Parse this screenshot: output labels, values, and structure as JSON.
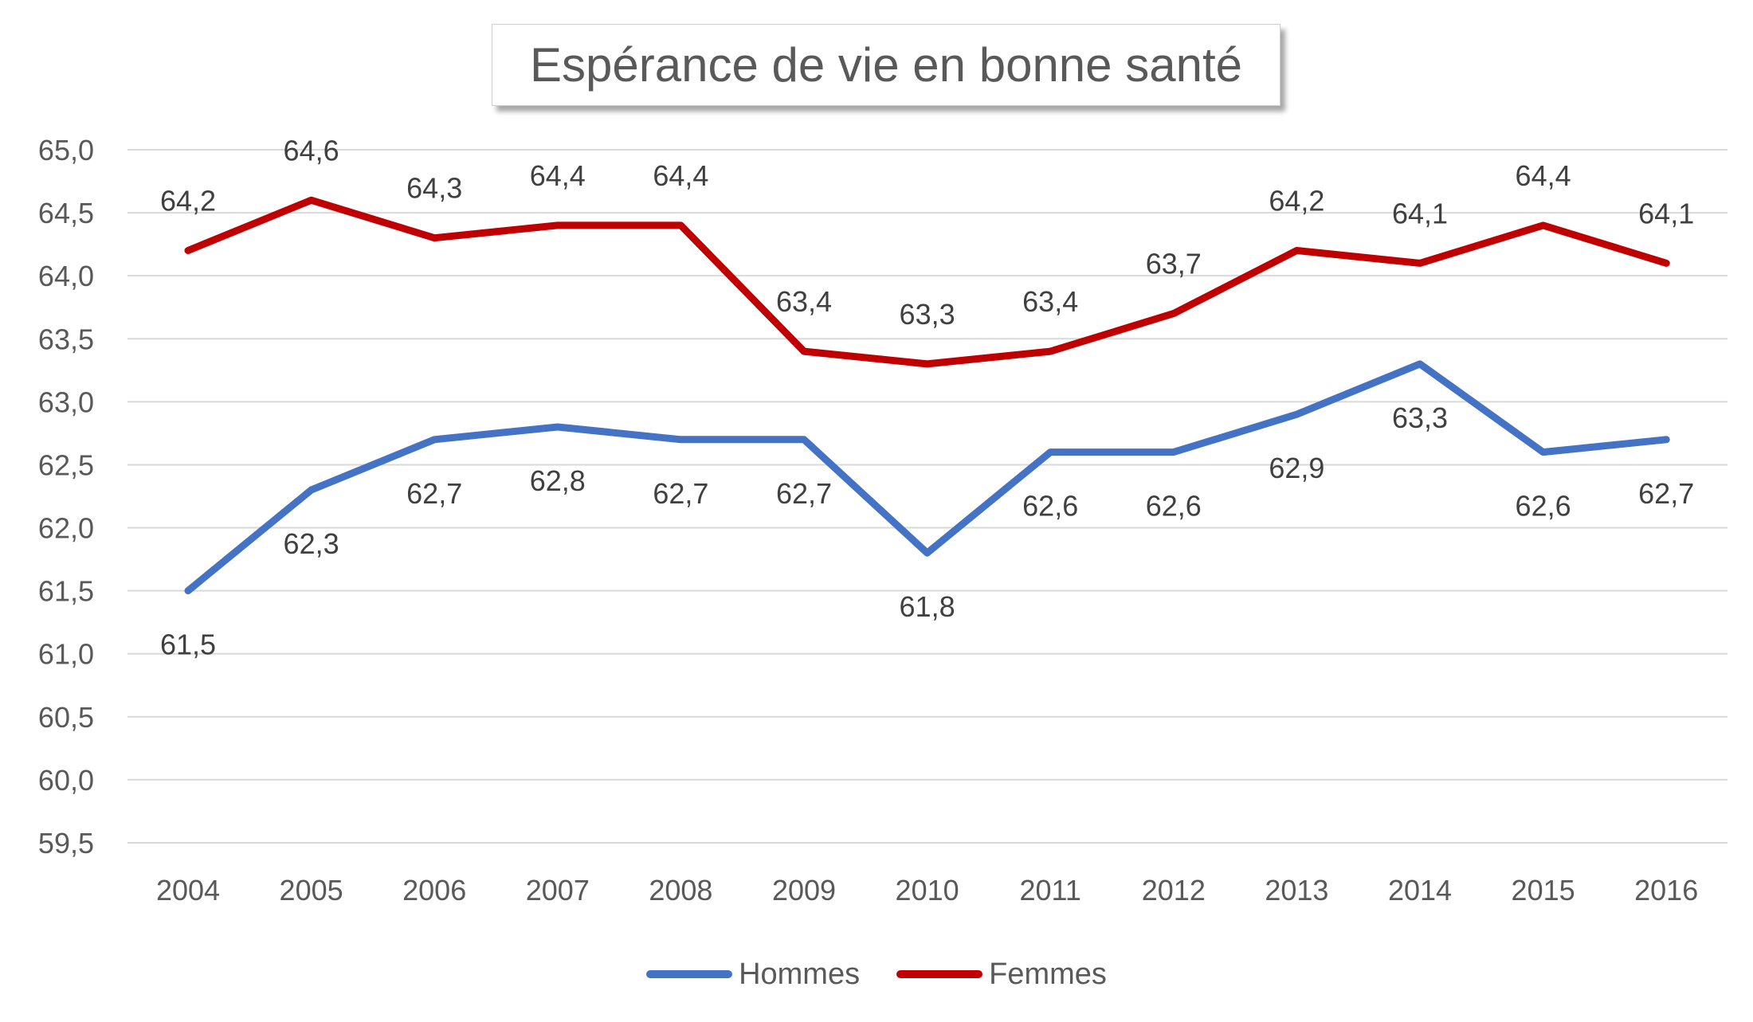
{
  "chart_data": {
    "type": "line",
    "title": "Espérance de vie en bonne santé",
    "categories": [
      "2004",
      "2005",
      "2006",
      "2007",
      "2008",
      "2009",
      "2010",
      "2011",
      "2012",
      "2013",
      "2014",
      "2015",
      "2016"
    ],
    "series": [
      {
        "name": "Hommes",
        "color": "#4472c4",
        "values": [
          61.5,
          62.3,
          62.7,
          62.8,
          62.7,
          62.7,
          61.8,
          62.6,
          62.6,
          62.9,
          63.3,
          62.6,
          62.7
        ],
        "labels": [
          "61,5",
          "62,3",
          "62,7",
          "62,8",
          "62,7",
          "62,7",
          "61,8",
          "62,6",
          "62,6",
          "62,9",
          "63,3",
          "62,6",
          "62,7"
        ],
        "label_position": "below"
      },
      {
        "name": "Femmes",
        "color": "#c00000",
        "values": [
          64.2,
          64.6,
          64.3,
          64.4,
          64.4,
          63.4,
          63.3,
          63.4,
          63.7,
          64.2,
          64.1,
          64.4,
          64.1
        ],
        "labels": [
          "64,2",
          "64,6",
          "64,3",
          "64,4",
          "64,4",
          "63,4",
          "63,3",
          "63,4",
          "63,7",
          "64,2",
          "64,1",
          "64,4",
          "64,1"
        ],
        "label_position": "above"
      }
    ],
    "ylim": [
      59.5,
      65.0
    ],
    "yticks": [
      "59,5",
      "60,0",
      "60,5",
      "61,0",
      "61,5",
      "62,0",
      "62,5",
      "63,0",
      "63,5",
      "64,0",
      "64,5",
      "65,0"
    ],
    "grid": true,
    "legend_position": "bottom"
  }
}
